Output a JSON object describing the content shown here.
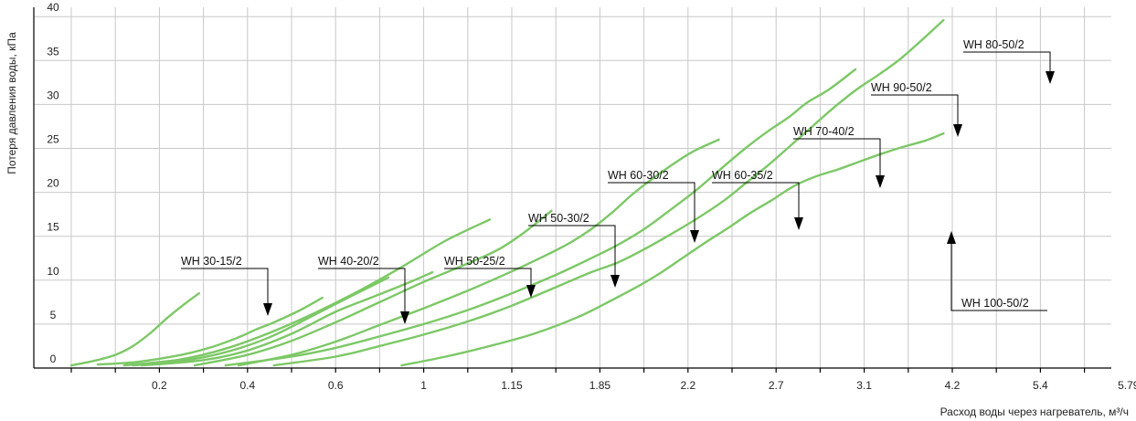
{
  "chart_data": {
    "type": "line",
    "xlabel": "Расход воды через нагреватель, м³/ч",
    "ylabel": "Потеря давления воды, кПа",
    "x_tick_labels": [
      "0.2",
      "0.4",
      "0.6",
      "1",
      "1.15",
      "1.85",
      "2.2",
      "2.7",
      "3.1",
      "4.2",
      "5.4",
      "5.79"
    ],
    "y_ticks": [
      0,
      5,
      10,
      15,
      20,
      25,
      30,
      35,
      40
    ],
    "ylim": [
      0,
      41
    ],
    "grid": true,
    "note": "x axis is non-uniform; series x values are given in x-tick-index units (0 = axis origin, 1 = 0.2, 2 = 0.4, ... 12 = 5.79)",
    "series": [
      {
        "name": "WH 30-15/2",
        "x": [
          0,
          0.5,
          1,
          1.4,
          1.8,
          2.2,
          2.6,
          2.9
        ],
        "y": [
          0.3,
          0.8,
          1.5,
          2.5,
          4.0,
          5.8,
          7.4,
          8.5
        ]
      },
      {
        "name": "WH 40-20/2",
        "x": [
          0.6,
          1.5,
          2.5,
          3.2,
          3.8,
          4.2,
          4.6,
          5.2,
          5.7
        ],
        "y": [
          0.4,
          0.7,
          1.5,
          2.4,
          3.5,
          4.4,
          5.2,
          6.6,
          8.0
        ]
      },
      {
        "name": "WH 50-25/2",
        "x": [
          1.4,
          2.5,
          3.5,
          4.5,
          5.5,
          6.2,
          6.8,
          7.2
        ],
        "y": [
          0.3,
          0.8,
          1.8,
          3.5,
          6.0,
          7.8,
          9.3,
          10.3
        ]
      },
      {
        "name": "WH 50-30/2",
        "x": [
          1.6,
          3,
          4,
          5,
          6,
          6.8,
          7.6,
          8.2
        ],
        "y": [
          0.3,
          0.9,
          2.0,
          3.9,
          6.4,
          8.0,
          9.6,
          10.9
        ]
      },
      {
        "name": "WH 60-30/2",
        "x": [
          1.2,
          2.5,
          3.5,
          4.5,
          5.5,
          6.5,
          7.5,
          8.5,
          9.5
        ],
        "y": [
          0.3,
          1.0,
          2.2,
          4.0,
          6.2,
          8.7,
          11.5,
          14.5,
          16.9
        ]
      },
      {
        "name": "WH 60-35/2",
        "x": [
          2.8,
          4,
          5,
          6,
          7,
          8,
          9,
          9.7,
          10.3,
          10.9
        ],
        "y": [
          0.3,
          1.5,
          3.1,
          5.2,
          7.5,
          9.8,
          11.9,
          13.5,
          15.5,
          17.9
        ]
      },
      {
        "name": "WH 70-40/2",
        "x": [
          3.8,
          5,
          6,
          7,
          8,
          9,
          10,
          10.8,
          11.3,
          11.8,
          12.3,
          12.7,
          13.1,
          13.6,
          14.1,
          14.7
        ],
        "y": [
          0.3,
          1.5,
          3.0,
          4.9,
          6.8,
          8.8,
          11.0,
          12.9,
          14.2,
          15.8,
          17.8,
          19.6,
          21.2,
          23.0,
          24.6,
          26.0
        ]
      },
      {
        "name": "WH 90-50/2",
        "x": [
          3.5,
          5,
          6,
          7,
          8,
          9,
          10,
          11,
          11.8,
          12.4,
          13,
          13.6,
          14.2,
          14.8,
          15.3,
          15.8,
          16.3,
          16.7,
          17.2,
          17.8
        ],
        "y": [
          0.3,
          1.3,
          2.3,
          3.6,
          5.0,
          6.6,
          8.5,
          10.6,
          12.5,
          14.0,
          15.8,
          18.0,
          20.3,
          22.9,
          25.0,
          26.9,
          28.6,
          30.2,
          31.7,
          34.0
        ]
      },
      {
        "name": "WH 80-50/2",
        "x": [
          4.6,
          6,
          7,
          8,
          9,
          10,
          11,
          11.8,
          12.4,
          13,
          13.6,
          14.2,
          14.8,
          15.3,
          15.8,
          16.3,
          16.8,
          17.3,
          17.8,
          18.3,
          18.8,
          19.3,
          19.8
        ],
        "y": [
          0.3,
          1.3,
          2.5,
          3.8,
          5.3,
          7.1,
          9.2,
          10.9,
          12.0,
          13.5,
          15.2,
          17.0,
          19.0,
          21.0,
          23.0,
          25.2,
          27.4,
          29.6,
          31.6,
          33.3,
          35.1,
          37.3,
          39.6
        ]
      },
      {
        "name": "WH 100-50/2",
        "x": [
          7.5,
          8.5,
          9.5,
          10.5,
          11.5,
          12.3,
          12.9,
          13.4,
          13.9,
          14.4,
          14.9,
          15.4,
          15.9,
          16.4,
          16.9,
          17.4,
          17.9,
          18.4,
          18.9,
          19.4,
          19.8
        ],
        "y": [
          0.3,
          1.3,
          2.5,
          3.9,
          5.8,
          7.8,
          9.4,
          10.9,
          12.6,
          14.3,
          15.9,
          17.6,
          19.1,
          20.7,
          21.8,
          22.6,
          23.5,
          24.4,
          25.2,
          25.9,
          26.7
        ]
      }
    ],
    "labels": [
      {
        "text": "WH 30-15/2",
        "series": "WH 30-15/2",
        "arrow": "down"
      },
      {
        "text": "WH 40-20/2",
        "series": "WH 40-20/2",
        "arrow": "down"
      },
      {
        "text": "WH 50-25/2",
        "series": "WH 50-25/2",
        "arrow": "down"
      },
      {
        "text": "WH 50-30/2",
        "series": "WH 60-30/2",
        "arrow": "down"
      },
      {
        "text": "WH 60-30/2",
        "series": "WH 60-35/2",
        "arrow": "down"
      },
      {
        "text": "WH 60-35/2",
        "series": "WH 70-40/2",
        "arrow": "down"
      },
      {
        "text": "WH 70-40/2",
        "series": "WH 90-50/2",
        "arrow": "down"
      },
      {
        "text": "WH 90-50/2",
        "series": "WH 80-50/2",
        "arrow": "down"
      },
      {
        "text": "WH 80-50/2",
        "series": "WH 80-50/2",
        "arrow": "down"
      },
      {
        "text": "WH 100-50/2",
        "series": "WH 100-50/2",
        "arrow": "up"
      }
    ]
  }
}
